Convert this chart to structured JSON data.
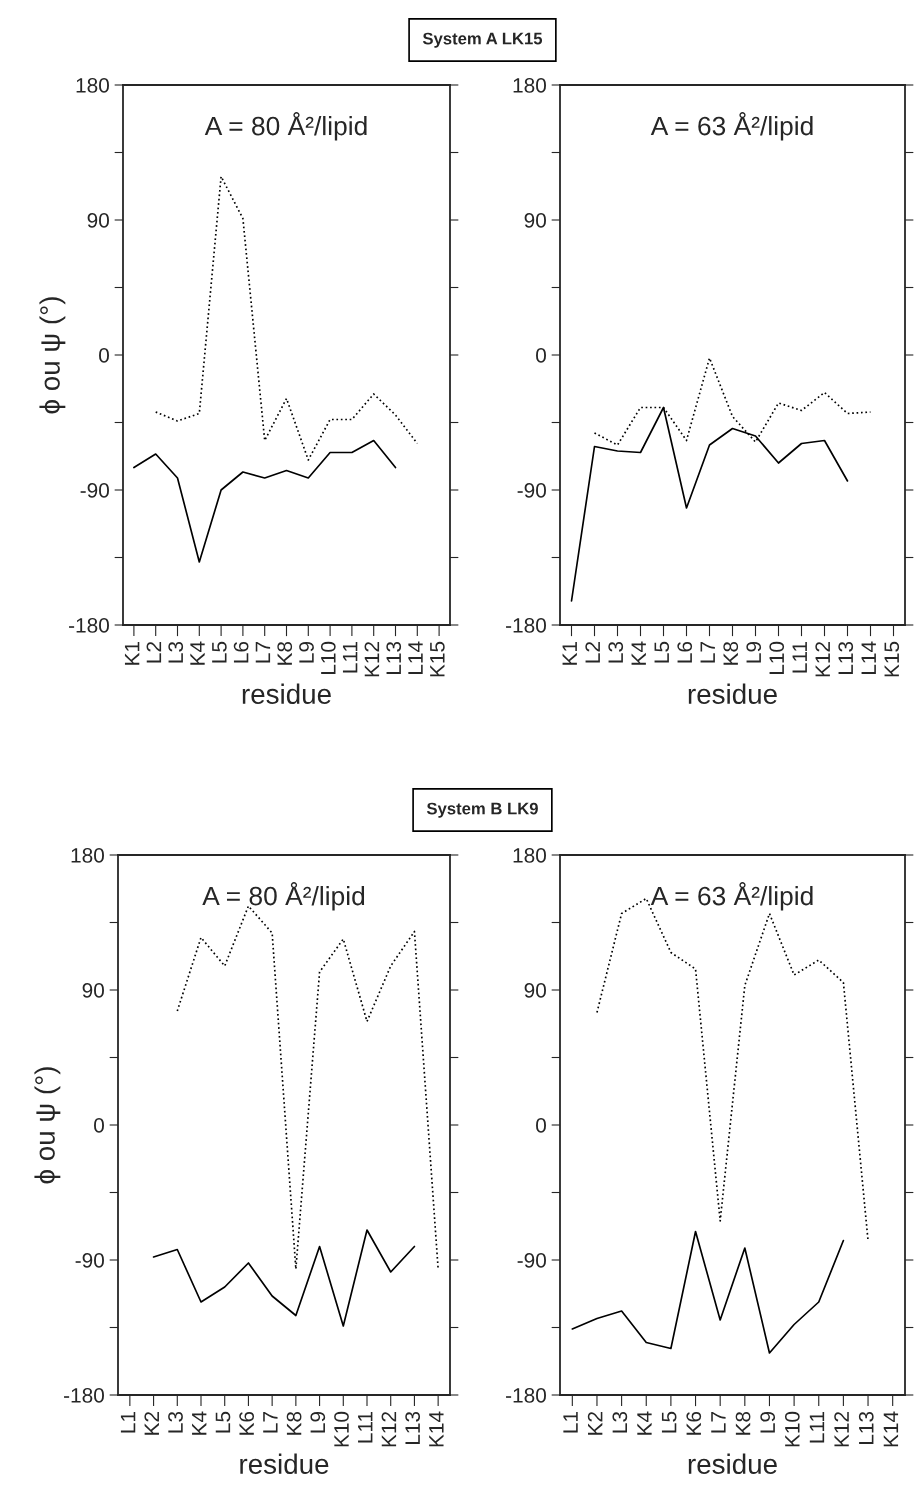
{
  "chart_data": [
    {
      "type": "line",
      "title": "A = 80 Å²/lipid",
      "xlabel": "residue",
      "ylabel": "ϕ ou ψ (°)",
      "annotations": [
        "System A LK15"
      ],
      "categories": [
        "K1",
        "L2",
        "L3",
        "K4",
        "L5",
        "L6",
        "L7",
        "K8",
        "L9",
        "L10",
        "L11",
        "K12",
        "L13",
        "L14",
        "K15"
      ],
      "series": [
        {
          "color": "#000000",
          "line_style": "solid",
          "values": [
            -75,
            -66,
            -82,
            -138,
            -90,
            -78,
            -82,
            -77,
            -82,
            -65,
            -65,
            -57,
            -75,
            null,
            null
          ]
        },
        {
          "color": "#000000",
          "line_style": "dotted",
          "values": [
            null,
            -38,
            -44,
            -39,
            119,
            91,
            -57,
            -29,
            -70,
            -43,
            -43,
            -26,
            -40,
            -59,
            null
          ]
        }
      ],
      "ylim": [
        -180,
        180
      ],
      "yticks": [
        -180,
        {
          "value": -135,
          "label": null
        },
        -90,
        {
          "value": -45,
          "label": null
        },
        0,
        {
          "value": 45,
          "label": null
        },
        90,
        {
          "value": 135,
          "label": null
        },
        180
      ],
      "grid": false,
      "marker": "none"
    },
    {
      "type": "line",
      "title": "A = 63 Å²/lipid",
      "xlabel": "residue",
      "categories": [
        "K1",
        "L2",
        "L3",
        "K4",
        "L5",
        "L6",
        "L7",
        "K8",
        "L9",
        "L10",
        "L11",
        "K12",
        "L13",
        "L14",
        "K15"
      ],
      "series": [
        {
          "color": "#000000",
          "line_style": "solid",
          "values": [
            -164,
            -61,
            -64,
            -65,
            -35,
            -102,
            -60,
            -49,
            -54,
            -72,
            -59,
            -57,
            -84,
            null,
            null
          ]
        },
        {
          "color": "#000000",
          "line_style": "dotted",
          "values": [
            null,
            -52,
            -60,
            -35,
            -35,
            -57,
            -2,
            -41,
            -58,
            -32,
            -37,
            -25,
            -39,
            -38,
            null
          ]
        }
      ],
      "ylim": [
        -180,
        180
      ],
      "yticks": [
        -180,
        {
          "value": -135,
          "label": null
        },
        -90,
        {
          "value": -45,
          "label": null
        },
        0,
        {
          "value": 45,
          "label": null
        },
        90,
        {
          "value": 135,
          "label": null
        },
        180
      ],
      "grid": false,
      "marker": "none"
    },
    {
      "type": "line",
      "title": "A = 80 Å²/lipid",
      "xlabel": "residue",
      "ylabel": "ϕ ou ψ (°)",
      "annotations": [
        "System B LK9"
      ],
      "categories": [
        "L1",
        "K2",
        "L3",
        "K4",
        "L5",
        "K6",
        "L7",
        "K8",
        "L9",
        "K10",
        "L11",
        "K12",
        "L13",
        "K14"
      ],
      "series": [
        {
          "color": "#000000",
          "line_style": "solid",
          "values": [
            null,
            -88,
            -83,
            -118,
            -108,
            -92,
            -114,
            -127,
            -81,
            -134,
            -70,
            -98,
            -81,
            null
          ]
        },
        {
          "color": "#000000",
          "line_style": "dotted",
          "values": [
            null,
            null,
            76,
            125,
            106,
            146,
            128,
            -96,
            102,
            124,
            69,
            106,
            129,
            -96
          ]
        }
      ],
      "ylim": [
        -180,
        180
      ],
      "yticks": [
        -180,
        {
          "value": -135,
          "label": null
        },
        -90,
        {
          "value": -45,
          "label": null
        },
        0,
        {
          "value": 45,
          "label": null
        },
        90,
        {
          "value": 135,
          "label": null
        },
        180
      ],
      "grid": false,
      "marker": "none"
    },
    {
      "type": "line",
      "title": "A = 63 Å²/lipid",
      "xlabel": "residue",
      "categories": [
        "L1",
        "K2",
        "L3",
        "K4",
        "L5",
        "K6",
        "L7",
        "K8",
        "L9",
        "K10",
        "L11",
        "K12",
        "L13",
        "K14"
      ],
      "series": [
        {
          "color": "#000000",
          "line_style": "solid",
          "values": [
            -136,
            -129,
            -124,
            -145,
            -149,
            -71,
            -130,
            -82,
            -152,
            -133,
            -118,
            -77,
            null,
            null
          ]
        },
        {
          "color": "#000000",
          "line_style": "dotted",
          "values": [
            null,
            75,
            141,
            151,
            115,
            104,
            -64,
            93,
            141,
            100,
            110,
            95,
            -77,
            null
          ]
        }
      ],
      "ylim": [
        -180,
        180
      ],
      "yticks": [
        -180,
        {
          "value": -135,
          "label": null
        },
        -90,
        {
          "value": -45,
          "label": null
        },
        0,
        {
          "value": 45,
          "label": null
        },
        90,
        {
          "value": 135,
          "label": null
        },
        180
      ],
      "grid": false,
      "marker": "none"
    }
  ]
}
